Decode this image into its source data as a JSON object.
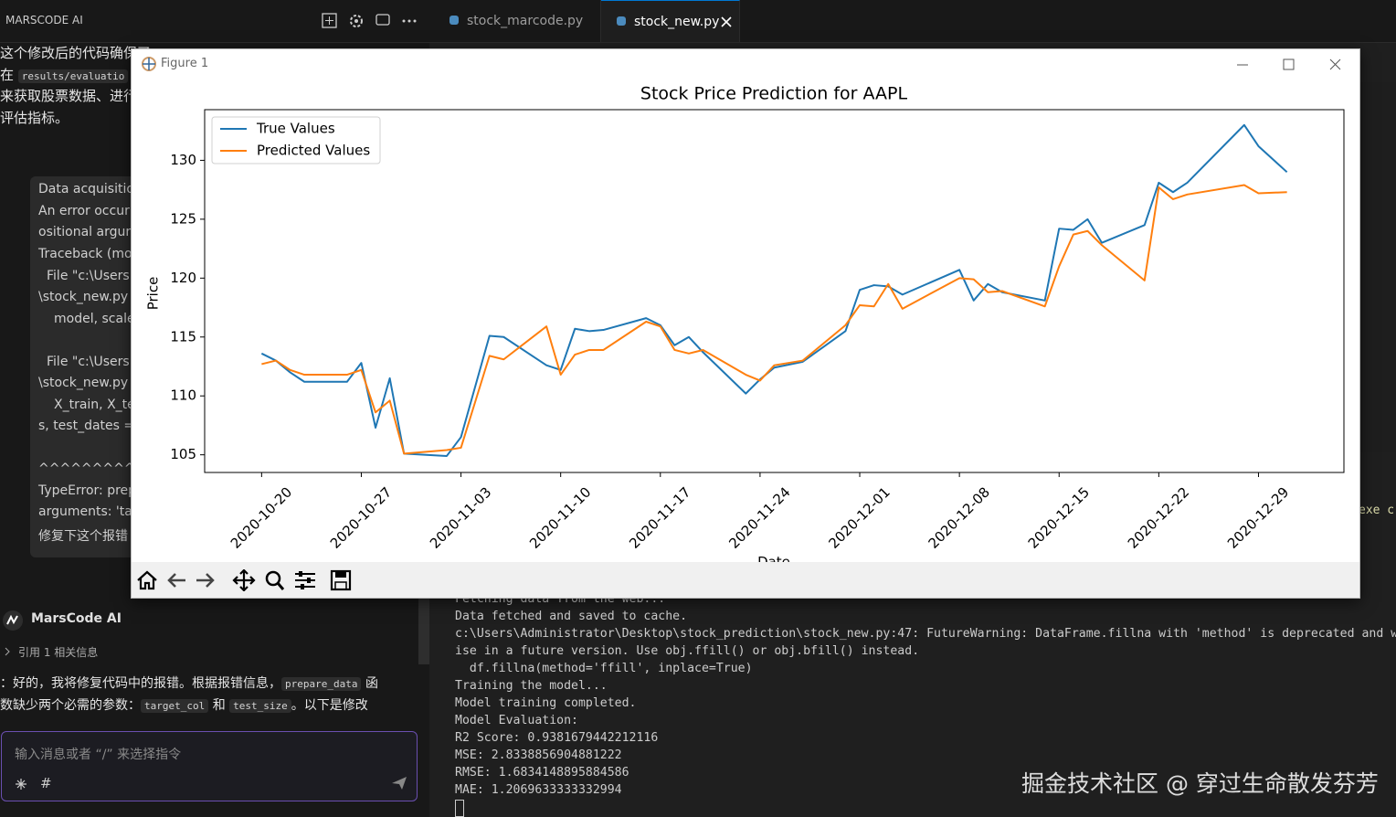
{
  "topbar": {
    "panel_title": "MARSCODE AI",
    "tabs": [
      "stock_marcode.py",
      "stock_new.py"
    ]
  },
  "sidebar": {
    "message": {
      "line0": "这个修改后的代码确保了",
      "line1": [
        "在",
        "results/evaluatio"
      ],
      "line2": "来获取股票数据、进行",
      "line3": "评估指标。"
    },
    "error_box": [
      "Data acquisitio",
      "An error occur",
      "ositional argur",
      "Traceback (mo",
      "File \"c:\\Users",
      "\\stock_new.py",
      "model, scale",
      "File \"c:\\Users",
      "\\stock_new.py",
      "X_train, X_te",
      "s, test_dates =",
      "^^^^^^^^^",
      "TypeError: prep",
      "arguments: 'ta",
      "修复下这个报错"
    ],
    "assistant_name": "MarsCode AI",
    "reference": "引用 1 相关信息",
    "reply": {
      "line0": [
        "：好的，我将修复代码中的报错。根据报错信息，",
        "prepare_data",
        "函"
      ],
      "line1": [
        "数缺少两个必需的参数：",
        "target_col",
        "和",
        "test_size",
        "。以下是修改"
      ]
    },
    "input_placeholder": "输入消息或者 “/” 来选择指令",
    "input_hash": "#"
  },
  "editor_fragment": "exe c",
  "terminal": {
    "lines": [
      "Fetching data from the web...",
      "Data fetched and saved to cache.",
      "c:\\Users\\Administrator\\Desktop\\stock_prediction\\stock_new.py:47: FutureWarning: DataFrame.fillna with 'method' is deprecated and wil",
      "ise in a future version. Use obj.ffill() or obj.bfill() instead.",
      "  df.fillna(method='ffill', inplace=True)",
      "Training the model...",
      "Model training completed.",
      "Model Evaluation:",
      "R2 Score: 0.9381679442212116",
      "MSE: 2.8338856904881222",
      "RMSE: 1.6834148895884586",
      "MAE: 1.2069633333332994"
    ]
  },
  "watermark": "掘金技术社区 @ 穿过生命散发芬芳",
  "figure": {
    "title": "Figure 1"
  },
  "chart_data": {
    "type": "line",
    "title": "Stock Price Prediction for AAPL",
    "x_label": "Date",
    "y_label": "Price",
    "x": [
      "2020-10-20",
      "2020-10-21",
      "2020-10-22",
      "2020-10-23",
      "2020-10-26",
      "2020-10-27",
      "2020-10-28",
      "2020-10-29",
      "2020-10-30",
      "2020-11-02",
      "2020-11-03",
      "2020-11-05",
      "2020-11-06",
      "2020-11-09",
      "2020-11-10",
      "2020-11-11",
      "2020-11-12",
      "2020-11-13",
      "2020-11-16",
      "2020-11-17",
      "2020-11-18",
      "2020-11-19",
      "2020-11-20",
      "2020-11-23",
      "2020-11-24",
      "2020-11-25",
      "2020-11-27",
      "2020-11-30",
      "2020-12-01",
      "2020-12-02",
      "2020-12-03",
      "2020-12-04",
      "2020-12-08",
      "2020-12-09",
      "2020-12-10",
      "2020-12-11",
      "2020-12-14",
      "2020-12-15",
      "2020-12-16",
      "2020-12-17",
      "2020-12-18",
      "2020-12-21",
      "2020-12-22",
      "2020-12-23",
      "2020-12-24",
      "2020-12-28",
      "2020-12-29",
      "2020-12-31"
    ],
    "series": [
      {
        "name": "True Values",
        "color": "#1f77b4",
        "values": [
          113.6,
          113.0,
          112.0,
          111.2,
          111.2,
          112.8,
          107.3,
          111.5,
          105.1,
          104.9,
          106.5,
          115.1,
          115.0,
          112.6,
          112.2,
          115.7,
          115.5,
          115.6,
          116.6,
          116.0,
          114.3,
          115.0,
          113.7,
          110.2,
          111.4,
          112.4,
          112.9,
          115.5,
          119.0,
          119.4,
          119.3,
          118.6,
          120.7,
          118.1,
          119.5,
          118.8,
          118.1,
          124.2,
          124.1,
          125.0,
          123.0,
          124.5,
          128.1,
          127.3,
          128.1,
          133.0,
          131.2,
          129.0
        ]
      },
      {
        "name": "Predicted Values",
        "color": "#ff7f0e",
        "values": [
          112.7,
          113.0,
          112.2,
          111.8,
          111.8,
          112.2,
          108.6,
          109.6,
          105.1,
          105.4,
          105.6,
          113.4,
          113.1,
          115.9,
          111.8,
          113.5,
          113.9,
          113.9,
          116.3,
          115.9,
          113.9,
          113.6,
          113.9,
          111.8,
          111.3,
          112.6,
          113.0,
          116.0,
          117.7,
          117.6,
          119.5,
          117.4,
          120.0,
          119.9,
          118.8,
          118.9,
          117.6,
          121.0,
          123.7,
          124.0,
          122.8,
          119.8,
          127.7,
          126.7,
          127.1,
          127.9,
          127.2,
          127.3
        ]
      }
    ],
    "xlim": [
      "2020-10-16",
      "2021-01-04"
    ],
    "xticks": [
      "2020-10-20",
      "2020-10-27",
      "2020-11-03",
      "2020-11-10",
      "2020-11-17",
      "2020-11-24",
      "2020-12-01",
      "2020-12-08",
      "2020-12-15",
      "2020-12-22",
      "2020-12-29"
    ],
    "ylim": [
      103.5,
      134.3
    ],
    "yticks": [
      105,
      110,
      115,
      120,
      125,
      130
    ],
    "legend": "upper left",
    "grid": false
  }
}
